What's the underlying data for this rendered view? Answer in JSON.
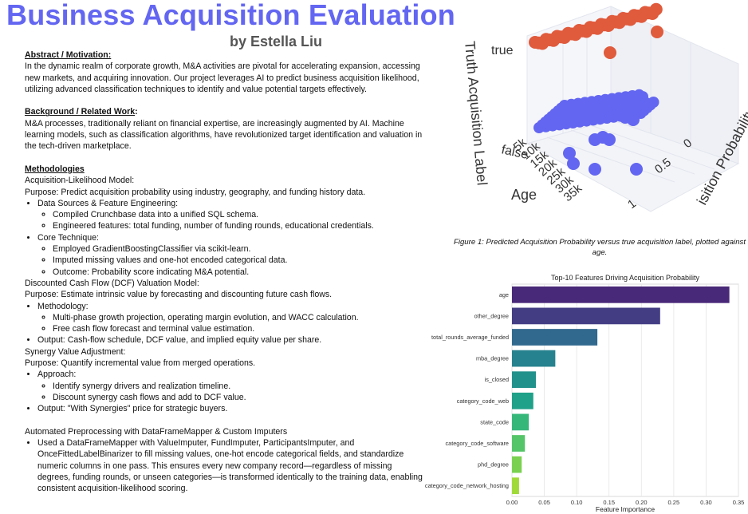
{
  "header": {
    "title": "Business Acquisition Evaluation",
    "author": "by Estella Liu"
  },
  "sections": {
    "abstract_heading": "Abstract / Motivation:",
    "abstract_text": "In the dynamic realm of corporate growth, M&A activities are pivotal for accelerating expansion, accessing new markets, and acquiring innovation. Our project leverages AI to predict business acquisition likelihood, utilizing advanced classification techniques to identify and value potential targets effectively.",
    "background_heading": "Background / Related Work",
    "background_colon": ":",
    "background_text": "M&A processes, traditionally reliant on financial expertise, are increasingly augmented by AI. Machine learning models, such as classification algorithms, have revolutionized target identification and valuation in the tech-driven marketplace.",
    "methods_heading": "Methodologies",
    "acq_title": "Acquisition-Likelihood Model:",
    "acq_purpose": "Purpose: Predict acquisition probability using industry, geography, and funding history data.",
    "acq_b1": "Data Sources & Feature Engineering:",
    "acq_b1_s1": "Compiled Crunchbase data into a unified SQL schema.",
    "acq_b1_s2": "Engineered features: total funding, number of funding rounds, educational credentials.",
    "acq_b2": "Core Technique:",
    "acq_b2_s1": "Employed GradientBoostingClassifier via scikit-learn.",
    "acq_b2_s2": "Imputed missing values and one-hot encoded categorical data.",
    "acq_b2_s3": "Outcome: Probability score indicating M&A potential.",
    "dcf_title": "Discounted Cash Flow (DCF) Valuation Model:",
    "dcf_purpose": "Purpose: Estimate intrinsic value by forecasting and discounting future cash flows.",
    "dcf_b1": "Methodology:",
    "dcf_b1_s1": "Multi-phase growth projection, operating margin evolution, and WACC calculation.",
    "dcf_b1_s2": "Free cash flow forecast and terminal value estimation.",
    "dcf_b2": "Output: Cash-flow schedule, DCF value, and implied equity value per share.",
    "syn_title": "Synergy Value Adjustment:",
    "syn_purpose": "Purpose: Quantify incremental value from merged operations.",
    "syn_b1": "Approach:",
    "syn_b1_s1": "Identify synergy drivers and realization timeline.",
    "syn_b1_s2": "Discount synergy cash flows and add to DCF value.",
    "syn_b2": "Output: \"With Synergies\" price for strategic buyers.",
    "auto_title": "Automated Preprocessing with DataFrameMapper & Custom Imputers",
    "auto_b1": "Used a DataFrameMapper with ValueImputer, FundImputer, ParticipantsImputer, and OnceFittedLabelBinarizer to fill missing values, one-hot encode categorical fields, and standardize numeric columns in one pass. This ensures every new company record—regardless of missing degrees, funding rounds, or unseen categories—is transformed identically to the training data, enabling consistent acquisition-likelihood scoring."
  },
  "figure1": {
    "caption": "Figure 1:  Predicted Acquisition Probability versus true acquisition label, plotted against age.",
    "z_label": "Truth Acquisition Label",
    "x_label": "Age",
    "y_label": "isition Probability",
    "z_ticks": [
      "true",
      "false"
    ],
    "x_ticks": [
      "5k",
      "10k",
      "15k",
      "20k",
      "25k",
      "30k",
      "35k"
    ],
    "y_ticks": [
      "0",
      "0.5",
      "1"
    ],
    "true_color": "#e05a3c",
    "false_color": "#6366f1"
  },
  "chart_data": {
    "type": "bar",
    "orientation": "horizontal",
    "title": "Top-10 Features Driving Acquisition Probability",
    "xlabel": "Feature Importance",
    "ylabel": "",
    "xlim": [
      0,
      0.35
    ],
    "x_ticks": [
      "0.00",
      "0.05",
      "0.10",
      "0.15",
      "0.20",
      "0.25",
      "0.30",
      "0.35"
    ],
    "grid": "vertical",
    "categories": [
      "age",
      "other_degree",
      "total_rounds_average_funded",
      "mba_degree",
      "is_closed",
      "category_code_web",
      "state_code",
      "category_code_software",
      "phd_degree",
      "category_code_network_hosting"
    ],
    "values": [
      0.336,
      0.229,
      0.132,
      0.067,
      0.037,
      0.033,
      0.026,
      0.02,
      0.015,
      0.011
    ],
    "colors": [
      "#482878",
      "#433d84",
      "#31688e",
      "#26828e",
      "#21918c",
      "#1fa088",
      "#35b779",
      "#54c568",
      "#7ad151",
      "#a0da39"
    ]
  }
}
